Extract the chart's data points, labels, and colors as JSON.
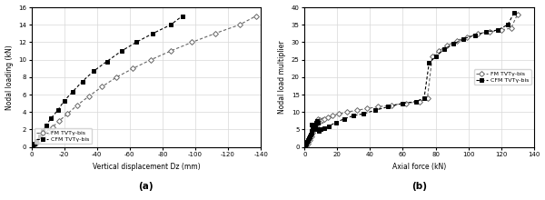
{
  "plot_a": {
    "fm_x": [
      0,
      -1,
      -2,
      -3,
      -5,
      -7,
      -10,
      -13,
      -17,
      -22,
      -28,
      -35,
      -43,
      -52,
      -62,
      -73,
      -85,
      -98,
      -112,
      -127,
      -137
    ],
    "fm_y": [
      0,
      0.1,
      0.3,
      0.5,
      0.8,
      1.2,
      1.7,
      2.3,
      3.0,
      3.8,
      4.8,
      5.8,
      6.9,
      8.0,
      9.0,
      10.0,
      11.0,
      12.0,
      13.0,
      14.0,
      15.0
    ],
    "cfm_x": [
      0,
      -1,
      -2,
      -3,
      -5,
      -7,
      -9,
      -12,
      -16,
      -20,
      -25,
      -31,
      -38,
      -46,
      -55,
      -64,
      -74,
      -85,
      -92
    ],
    "cfm_y": [
      0,
      0.2,
      0.4,
      0.7,
      1.2,
      1.8,
      2.5,
      3.3,
      4.2,
      5.3,
      6.3,
      7.5,
      8.7,
      9.8,
      11.0,
      12.0,
      13.0,
      14.0,
      15.0
    ],
    "xlabel": "Vertical displacement Dz (mm)",
    "ylabel": "Nodal loading (kN)",
    "xlim_lo": 0,
    "xlim_hi": -140,
    "ylim": [
      0,
      16
    ],
    "xticks": [
      0,
      -20,
      -40,
      -60,
      -80,
      -100,
      -120,
      -140
    ],
    "xticklabels": [
      "0",
      "-20",
      "-40",
      "-60",
      "-80",
      "-100",
      "-120",
      "-140"
    ],
    "yticks": [
      0,
      2,
      4,
      6,
      8,
      10,
      12,
      14,
      16
    ],
    "label_a": "(a)"
  },
  "plot_b": {
    "fm_x": [
      0,
      1,
      2,
      3,
      4,
      5,
      6,
      7,
      7.5,
      8,
      9,
      10,
      11,
      12,
      14,
      17,
      21,
      26,
      32,
      38,
      45,
      53,
      62,
      70,
      75,
      78,
      82,
      87,
      93,
      99,
      106,
      113,
      120,
      126,
      130
    ],
    "fm_y": [
      0,
      0.5,
      1.0,
      2.0,
      3.0,
      4.0,
      5.0,
      6.0,
      7.5,
      8.0,
      7.8,
      7.5,
      7.8,
      8.0,
      8.5,
      9.0,
      9.5,
      10.0,
      10.5,
      11.0,
      11.5,
      12.0,
      12.5,
      13.0,
      14.0,
      26.0,
      27.5,
      29.0,
      30.5,
      31.5,
      32.5,
      33.0,
      33.5,
      34.0,
      38.0
    ],
    "cfm_x": [
      0,
      0.5,
      1.0,
      1.5,
      2.0,
      2.5,
      3.0,
      3.5,
      4.0,
      4.5,
      5.0,
      5.5,
      6.0,
      6.5,
      7.0,
      7.5,
      8.0,
      4.5,
      5.5,
      6.5,
      7.5,
      8.5,
      10,
      12,
      15,
      19,
      24,
      30,
      36,
      43,
      51,
      60,
      68,
      73,
      76,
      80,
      85,
      91,
      97,
      104,
      111,
      118,
      124,
      128
    ],
    "cfm_y": [
      0,
      0.5,
      1.0,
      1.5,
      2.0,
      2.5,
      3.0,
      3.5,
      4.0,
      4.5,
      5.0,
      5.5,
      6.0,
      6.5,
      7.0,
      7.5,
      7.0,
      6.5,
      6.0,
      5.5,
      5.0,
      4.5,
      5.0,
      5.5,
      6.0,
      7.0,
      8.0,
      9.0,
      9.5,
      10.5,
      11.5,
      12.5,
      13.0,
      14.0,
      24.0,
      26.0,
      28.0,
      29.5,
      31.0,
      32.0,
      33.0,
      33.5,
      35.0,
      38.5
    ],
    "xlabel": "Axial force (kN)",
    "ylabel": "Nodal load multiplier",
    "xlim": [
      0,
      140
    ],
    "ylim": [
      0,
      40
    ],
    "xticks": [
      0,
      20,
      40,
      60,
      80,
      100,
      120,
      140
    ],
    "yticks": [
      0,
      5,
      10,
      15,
      20,
      25,
      30,
      35,
      40
    ],
    "label_b": "(b)"
  },
  "legend_fm": "FM TVTγ-bis",
  "legend_cfm": "CFM TVTγ-bis",
  "fm_color": "#666666",
  "cfm_color": "#000000",
  "grid_color": "#d8d8d8",
  "bg_color": "#ffffff"
}
